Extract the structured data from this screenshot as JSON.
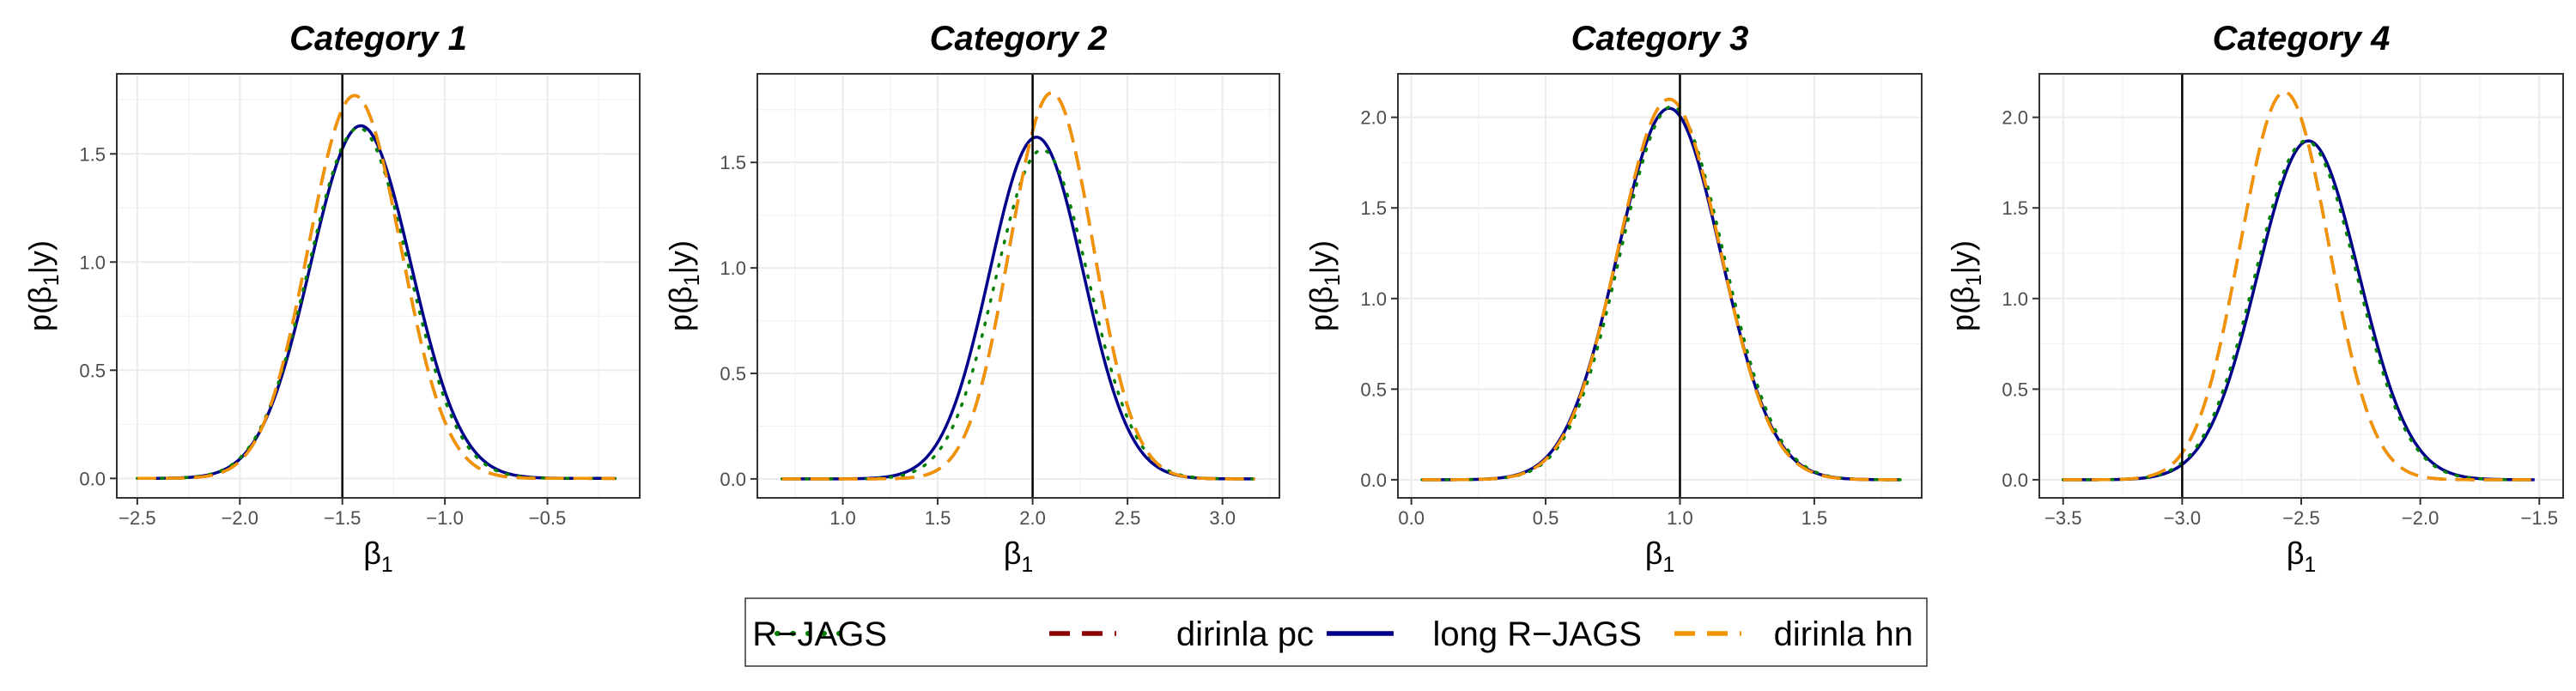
{
  "figure": {
    "legend_placement": "bottom",
    "xlabel": {
      "main": "β",
      "sub": "1"
    },
    "ylabel": {
      "pre": "p(β",
      "sub": "1",
      "post": "|y)"
    },
    "vertical_line_color": "#000000",
    "grid": true
  },
  "legend": [
    {
      "name": "R−JAGS",
      "color": "#008000",
      "dash": "dotted"
    },
    {
      "name": "dirinla pc",
      "color": "#8B0000",
      "dash": "dashed"
    },
    {
      "name": "long R−JAGS",
      "color": "#00008B",
      "dash": "solid"
    },
    {
      "name": "dirinla hn",
      "color": "#F29400",
      "dash": "dashed"
    }
  ],
  "chart_data": [
    {
      "type": "line",
      "title": "Category 1",
      "xlim": [
        -2.6,
        -0.05
      ],
      "ylim": [
        -0.09,
        1.87
      ],
      "x_ticks": [
        -2.5,
        -2.0,
        -1.5,
        -1.0,
        -0.5
      ],
      "x_tick_labels": [
        "−2.5",
        "−2.0",
        "−1.5",
        "−1.0",
        "−0.5"
      ],
      "y_ticks": [
        0,
        0.5,
        1.0,
        1.5
      ],
      "y_tick_labels": [
        "0.0",
        "0.5",
        "1.0",
        "1.5"
      ],
      "vline": -1.5,
      "x_range": [
        -2.5,
        -0.17
      ],
      "series": [
        {
          "name": "R−JAGS",
          "mean": -1.42,
          "sd": 0.243,
          "peak": 1.62
        },
        {
          "name": "dirinla pc",
          "mean": -1.44,
          "sd": 0.225,
          "peak": 1.77
        },
        {
          "name": "long R−JAGS",
          "mean": -1.41,
          "sd": 0.245,
          "peak": 1.63
        },
        {
          "name": "dirinla hn",
          "mean": -1.44,
          "sd": 0.225,
          "peak": 1.77
        }
      ]
    },
    {
      "type": "line",
      "title": "Category 2",
      "xlim": [
        0.55,
        3.3
      ],
      "ylim": [
        -0.09,
        1.92
      ],
      "x_ticks": [
        1.0,
        1.5,
        2.0,
        2.5,
        3.0
      ],
      "x_tick_labels": [
        "1.0",
        "1.5",
        "2.0",
        "2.5",
        "3.0"
      ],
      "y_ticks": [
        0,
        0.5,
        1.0,
        1.5
      ],
      "y_tick_labels": [
        "0.0",
        "0.5",
        "1.0",
        "1.5"
      ],
      "vline": 2.0,
      "x_range": [
        0.68,
        3.17
      ],
      "series": [
        {
          "name": "R−JAGS",
          "mean": 2.05,
          "sd": 0.245,
          "peak": 1.56
        },
        {
          "name": "dirinla pc",
          "mean": 2.1,
          "sd": 0.219,
          "peak": 1.83
        },
        {
          "name": "long R−JAGS",
          "mean": 2.02,
          "sd": 0.246,
          "peak": 1.62
        },
        {
          "name": "dirinla hn",
          "mean": 2.1,
          "sd": 0.219,
          "peak": 1.83
        }
      ]
    },
    {
      "type": "line",
      "title": "Category 3",
      "xlim": [
        -0.05,
        1.9
      ],
      "ylim": [
        -0.1,
        2.24
      ],
      "x_ticks": [
        0.0,
        0.5,
        1.0,
        1.5
      ],
      "x_tick_labels": [
        "0.0",
        "0.5",
        "1.0",
        "1.5"
      ],
      "y_ticks": [
        0,
        0.5,
        1.0,
        1.5,
        2.0
      ],
      "y_tick_labels": [
        "0.0",
        "0.5",
        "1.0",
        "1.5",
        "2.0"
      ],
      "vline": 1.0,
      "x_range": [
        0.04,
        1.82
      ],
      "series": [
        {
          "name": "R−JAGS",
          "mean": 0.97,
          "sd": 0.192,
          "peak": 2.06
        },
        {
          "name": "dirinla pc",
          "mean": 0.96,
          "sd": 0.19,
          "peak": 2.1
        },
        {
          "name": "long R−JAGS",
          "mean": 0.96,
          "sd": 0.193,
          "peak": 2.05
        },
        {
          "name": "dirinla hn",
          "mean": 0.96,
          "sd": 0.19,
          "peak": 2.1
        }
      ]
    },
    {
      "type": "line",
      "title": "Category 4",
      "xlim": [
        -3.6,
        -1.4
      ],
      "ylim": [
        -0.1,
        2.24
      ],
      "x_ticks": [
        -3.5,
        -3.0,
        -2.5,
        -2.0,
        -1.5
      ],
      "x_tick_labels": [
        "−3.5",
        "−3.0",
        "−2.5",
        "−2.0",
        "−1.5"
      ],
      "y_ticks": [
        0,
        0.5,
        1.0,
        1.5,
        2.0
      ],
      "y_tick_labels": [
        "0.0",
        "0.5",
        "1.0",
        "1.5",
        "2.0"
      ],
      "vline": -3.0,
      "x_range": [
        -3.5,
        -1.52
      ],
      "series": [
        {
          "name": "R−JAGS",
          "mean": -2.48,
          "sd": 0.213,
          "peak": 1.87
        },
        {
          "name": "dirinla pc",
          "mean": -2.57,
          "sd": 0.186,
          "peak": 2.14
        },
        {
          "name": "long R−JAGS",
          "mean": -2.47,
          "sd": 0.213,
          "peak": 1.87
        },
        {
          "name": "dirinla hn",
          "mean": -2.57,
          "sd": 0.186,
          "peak": 2.14
        }
      ]
    }
  ]
}
